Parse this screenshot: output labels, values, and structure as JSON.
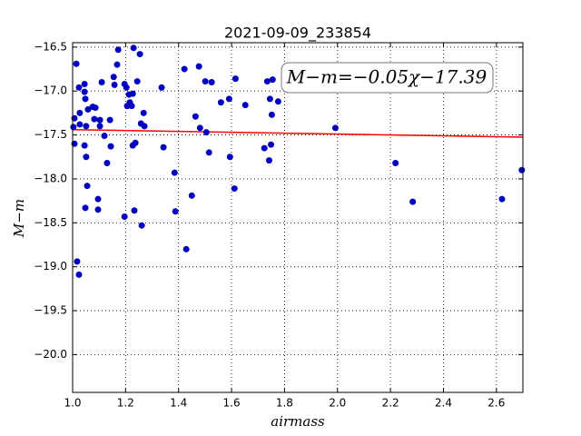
{
  "chart_data": {
    "type": "scatter",
    "title": "2021-09-09_233854",
    "xlabel": "airmass",
    "ylabel": "M−m",
    "annotation": "M−m=−0.05χ−17.39",
    "xlim": [
      1.0,
      2.7
    ],
    "ylim": [
      -20.43,
      -16.45
    ],
    "xticks": [
      {
        "value": 1.0,
        "label": "1.0"
      },
      {
        "value": 1.2,
        "label": "1.2"
      },
      {
        "value": 1.4,
        "label": "1.4"
      },
      {
        "value": 1.6,
        "label": "1.6"
      },
      {
        "value": 1.8,
        "label": "1.8"
      },
      {
        "value": 2.0,
        "label": "2.0"
      },
      {
        "value": 2.2,
        "label": "2.2"
      },
      {
        "value": 2.4,
        "label": "2.4"
      },
      {
        "value": 2.6,
        "label": "2.6"
      }
    ],
    "yticks": [
      {
        "value": -16.5,
        "label": "−16.5"
      },
      {
        "value": -17.0,
        "label": "−17.0"
      },
      {
        "value": -17.5,
        "label": "−17.5"
      },
      {
        "value": -18.0,
        "label": "−18.0"
      },
      {
        "value": -18.5,
        "label": "−18.5"
      },
      {
        "value": -19.0,
        "label": "−19.0"
      },
      {
        "value": -19.5,
        "label": "−19.5"
      },
      {
        "value": -20.0,
        "label": "−20.0"
      }
    ],
    "grid": true,
    "points": {
      "color": "#0000bf",
      "x": [
        1.007,
        1.014,
        1.003,
        1.007,
        1.017,
        1.024,
        1.024,
        1.027,
        1.027,
        1.045,
        1.045,
        1.048,
        1.051,
        1.045,
        1.051,
        1.055,
        1.048,
        1.058,
        1.076,
        1.082,
        1.086,
        1.103,
        1.103,
        1.096,
        1.096,
        1.11,
        1.12,
        1.13,
        1.141,
        1.144,
        1.155,
        1.158,
        1.168,
        1.172,
        1.196,
        1.203,
        1.206,
        1.213,
        1.216,
        1.227,
        1.223,
        1.227,
        1.237,
        1.23,
        1.244,
        1.254,
        1.258,
        1.271,
        1.268,
        1.196,
        1.233,
        1.261,
        1.336,
        1.343,
        1.385,
        1.388,
        1.422,
        1.429,
        1.45,
        1.464,
        1.477,
        1.481,
        1.505,
        1.501,
        1.525,
        1.515,
        1.56,
        1.591,
        1.594,
        1.611,
        1.615,
        1.652,
        1.724,
        1.735,
        1.742,
        1.745,
        1.749,
        1.752,
        1.755,
        1.776,
        1.992,
        2.219,
        2.284,
        2.621,
        2.696
      ],
      "y": [
        -17.31,
        -16.69,
        -17.41,
        -17.6,
        -18.94,
        -19.09,
        -16.96,
        -17.25,
        -17.38,
        -16.92,
        -17.01,
        -17.09,
        -17.4,
        -17.62,
        -17.75,
        -18.08,
        -18.33,
        -17.21,
        -17.18,
        -17.32,
        -17.19,
        -17.33,
        -17.4,
        -18.23,
        -18.35,
        -16.9,
        -17.51,
        -17.82,
        -17.33,
        -17.63,
        -16.84,
        -16.93,
        -16.7,
        -16.53,
        -16.92,
        -16.96,
        -17.17,
        -17.04,
        -17.13,
        -17.03,
        -17.17,
        -17.62,
        -17.59,
        -16.51,
        -16.89,
        -16.58,
        -17.37,
        -17.4,
        -17.25,
        -18.43,
        -18.36,
        -18.53,
        -16.96,
        -17.64,
        -17.93,
        -18.37,
        -16.75,
        -18.8,
        -18.19,
        -17.29,
        -16.72,
        -17.42,
        -17.47,
        -16.89,
        -16.9,
        -17.7,
        -17.13,
        -17.09,
        -17.75,
        -18.11,
        -16.86,
        -17.16,
        -17.65,
        -16.89,
        -17.79,
        -17.09,
        -17.61,
        -17.27,
        -16.87,
        -17.12,
        -17.42,
        -17.82,
        -18.26,
        -18.23,
        -17.9
      ]
    },
    "fit": {
      "color": "#ff0000",
      "x": [
        1.0,
        2.7
      ],
      "y": [
        -17.44,
        -17.525
      ]
    }
  }
}
